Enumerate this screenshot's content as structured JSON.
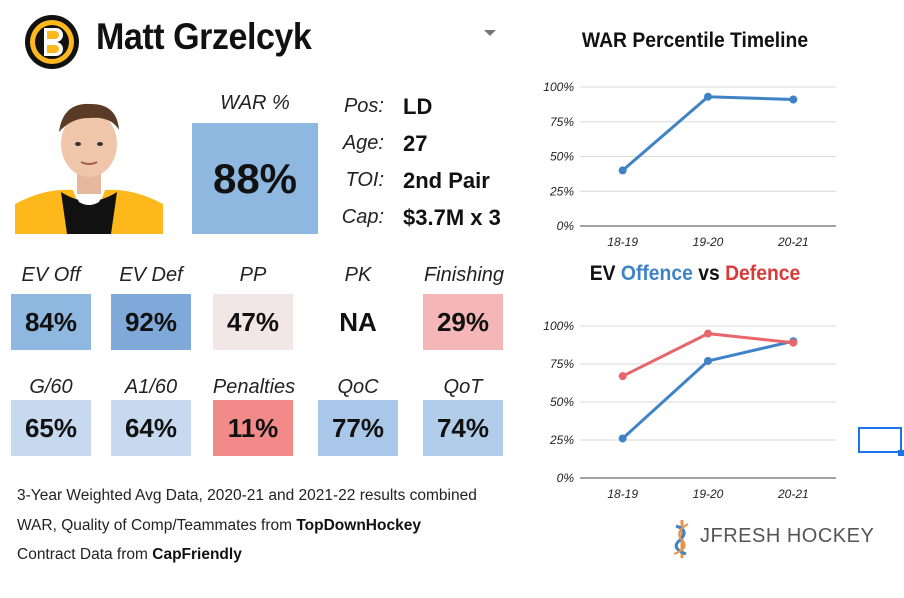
{
  "player": {
    "name": "Matt Grzelcyk",
    "war_label": "WAR %",
    "war_value": "88%",
    "info": [
      {
        "key": "Pos:",
        "value": "LD"
      },
      {
        "key": "Age:",
        "value": "27"
      },
      {
        "key": "TOI:",
        "value": "2nd Pair"
      },
      {
        "key": "Cap:",
        "value": "$3.7M x 3"
      }
    ]
  },
  "stats_row1": [
    {
      "label": "EV Off",
      "value": "84%",
      "color": "#8fb8e0"
    },
    {
      "label": "EV Def",
      "value": "92%",
      "color": "#7fa9d8"
    },
    {
      "label": "PP",
      "value": "47%",
      "color": "#f2e6e6"
    },
    {
      "label": "PK",
      "value": "NA",
      "color": "#ffffff"
    },
    {
      "label": "Finishing",
      "value": "29%",
      "color": "#f4b6b6"
    }
  ],
  "stats_row2": [
    {
      "label": "G/60",
      "value": "65%",
      "color": "#c7d9ee"
    },
    {
      "label": "A1/60",
      "value": "64%",
      "color": "#c7d9ee"
    },
    {
      "label": "Penalties",
      "value": "11%",
      "color": "#f28a8a"
    },
    {
      "label": "QoC",
      "value": "77%",
      "color": "#a9c7e8"
    },
    {
      "label": "QoT",
      "value": "74%",
      "color": "#b2cdea"
    }
  ],
  "footer": {
    "line1": "3-Year Weighted Avg Data, 2020-21 and 2021-22 results combined",
    "line2_prefix": "WAR, Quality of Comp/Teammates from ",
    "line2_source": "TopDownHockey",
    "line3_prefix": "Contract Data from ",
    "line3_source": "CapFriendly"
  },
  "brand": "JFRESH HOCKEY",
  "chart_data": [
    {
      "type": "line",
      "title": "WAR Percentile Timeline",
      "categories": [
        "18-19",
        "19-20",
        "20-21"
      ],
      "series": [
        {
          "name": "WAR",
          "values": [
            40,
            93,
            91
          ],
          "color": "#3f83c6"
        }
      ],
      "ylim": [
        0,
        100
      ],
      "yticks": [
        "0%",
        "25%",
        "50%",
        "75%",
        "100%"
      ],
      "ytick_values": [
        0,
        25,
        50,
        75,
        100
      ],
      "grid": true
    },
    {
      "type": "line",
      "title_parts": [
        {
          "text": "EV ",
          "color": "#111111"
        },
        {
          "text": "Offence",
          "color": "#3f83c6"
        },
        {
          "text": " vs ",
          "color": "#111111"
        },
        {
          "text": "Defence",
          "color": "#d93a3a"
        }
      ],
      "categories": [
        "18-19",
        "19-20",
        "20-21"
      ],
      "series": [
        {
          "name": "Offence",
          "values": [
            26,
            77,
            90
          ],
          "color": "#3f83c6"
        },
        {
          "name": "Defence",
          "values": [
            67,
            95,
            89
          ],
          "color": "#e8666b"
        }
      ],
      "ylim": [
        0,
        100
      ],
      "yticks": [
        "0%",
        "25%",
        "50%",
        "75%",
        "100%"
      ],
      "ytick_values": [
        0,
        25,
        50,
        75,
        100
      ],
      "grid": true
    }
  ]
}
